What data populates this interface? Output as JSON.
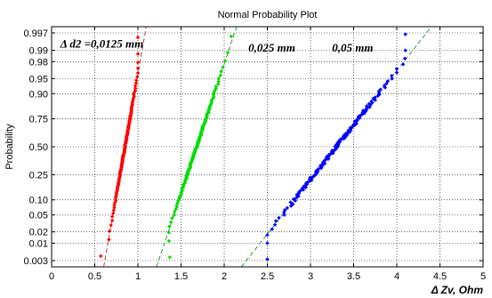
{
  "chart_data": {
    "type": "scatter",
    "title": "Normal Probability Plot",
    "xlabel": "Δ Zv, Ohm",
    "ylabel": "Probability",
    "xlim": [
      0,
      5
    ],
    "x_ticks": [
      0,
      0.5,
      1,
      1.5,
      2,
      2.5,
      3,
      3.5,
      4,
      4.5,
      5
    ],
    "y_ticks": [
      0.003,
      0.01,
      0.02,
      0.05,
      0.1,
      0.25,
      0.5,
      0.75,
      0.9,
      0.95,
      0.98,
      0.99,
      0.997
    ],
    "y_tick_labels": [
      "0.003",
      "0.01",
      "0.02",
      "0.05",
      "0.10",
      "0.25",
      "0.50",
      "0.75",
      "0.90",
      "0.95",
      "0.98",
      "0.99",
      "0.997"
    ],
    "y_scale": "normal-probability",
    "grid": true,
    "annotations": [
      {
        "text": "Δ d2 =0,0125 mm",
        "x": 0.1,
        "p": 0.9935
      },
      {
        "text": "0,025 mm",
        "x": 2.28,
        "p": 0.9915
      },
      {
        "text": "0,05 mm",
        "x": 3.25,
        "p": 0.9915
      }
    ],
    "series": [
      {
        "color": "#ff0000",
        "mean": 0.85,
        "sd": 0.085,
        "n": 120,
        "min": 0.57,
        "max": 1.0,
        "tail_low": 0.57,
        "tail_high": 1.0
      },
      {
        "color": "#00dd00",
        "mean": 1.68,
        "sd": 0.16,
        "n": 130,
        "min": 1.36,
        "max": 2.08,
        "tail_low": 1.37,
        "tail_high": 2.08
      },
      {
        "color": "#0000ff",
        "mean": 3.3,
        "sd": 0.38,
        "n": 150,
        "min": 2.5,
        "max": 4.1,
        "tail_low": 2.5,
        "tail_high": 4.1
      }
    ]
  }
}
